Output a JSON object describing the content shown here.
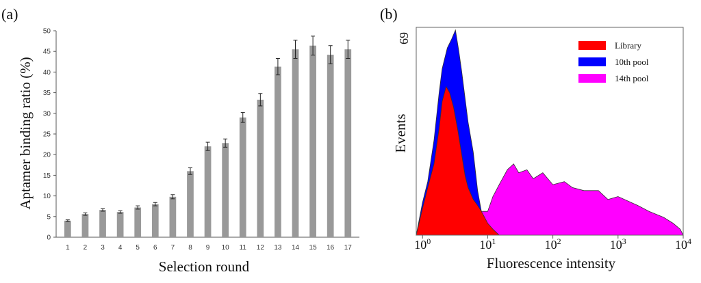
{
  "chart_data": [
    {
      "type": "bar",
      "panel_label": "(a)",
      "title": "",
      "xlabel": "Selection round",
      "ylabel": "Aptamer binding ratio (%)",
      "ylim": [
        0,
        50
      ],
      "yticks": [
        "0",
        "5",
        "10",
        "15",
        "20",
        "25",
        "30",
        "35",
        "40",
        "45",
        "50"
      ],
      "categories": [
        "1",
        "2",
        "3",
        "4",
        "5",
        "6",
        "7",
        "8",
        "9",
        "10",
        "11",
        "12",
        "13",
        "14",
        "15",
        "16",
        "17"
      ],
      "values": [
        4,
        5.6,
        6.6,
        6.1,
        7.2,
        8.0,
        9.8,
        16.0,
        22.0,
        22.8,
        29.0,
        33.3,
        41.3,
        45.5,
        46.4,
        44.2,
        45.5
      ],
      "errors": [
        0.2,
        0.3,
        0.3,
        0.3,
        0.4,
        0.4,
        0.5,
        0.8,
        1.0,
        1.0,
        1.2,
        1.5,
        2.0,
        2.2,
        2.3,
        2.2,
        2.2
      ],
      "colors": {
        "bar": "#999999",
        "error": "#222222"
      },
      "legend": "none",
      "grid": false
    },
    {
      "type": "area",
      "panel_label": "(b)",
      "title": "",
      "xlabel": "Fluorescence intensity",
      "ylabel": "Events",
      "x_scale": "log",
      "xlim": [
        0.8,
        10000
      ],
      "xticks": [
        1,
        10,
        100,
        1000,
        10000
      ],
      "xtick_labels": [
        {
          "base": "10",
          "exp": "0"
        },
        {
          "base": "10",
          "exp": "1"
        },
        {
          "base": "10",
          "exp": "2"
        },
        {
          "base": "10",
          "exp": "3"
        },
        {
          "base": "10",
          "exp": "4"
        }
      ],
      "ylim": [
        0,
        69
      ],
      "ymax_label": "69",
      "legend": "top-right",
      "grid": false,
      "series": [
        {
          "name": "14th pool",
          "color": "#ff00ff",
          "x": [
            0.8,
            1,
            2,
            5,
            8,
            10,
            12,
            15,
            20,
            25,
            30,
            40,
            50,
            70,
            100,
            150,
            200,
            300,
            500,
            700,
            1000,
            2000,
            3000,
            5000,
            7000,
            9000,
            10000
          ],
          "y": [
            0,
            3,
            5,
            7,
            8,
            8,
            13,
            17,
            22,
            24,
            21,
            22,
            19,
            21,
            17,
            18,
            16,
            15,
            15,
            12,
            13,
            10,
            8,
            6,
            4,
            2,
            0
          ]
        },
        {
          "name": "10th pool",
          "color": "#0000ff",
          "x": [
            0.8,
            1,
            1.2,
            1.5,
            1.8,
            2.0,
            2.4,
            2.8,
            3.2,
            3.6,
            4.0,
            4.5,
            5.0,
            6.0,
            7.0,
            8.0,
            9.0,
            10
          ],
          "y": [
            0,
            11,
            18,
            32,
            48,
            56,
            63,
            66,
            69,
            62,
            55,
            46,
            38,
            28,
            15,
            8,
            3,
            0
          ]
        },
        {
          "name": "Library",
          "color": "#ff0000",
          "x": [
            0.8,
            1,
            1.2,
            1.5,
            1.8,
            2.0,
            2.3,
            2.6,
            3.0,
            3.5,
            4.0,
            4.5,
            5.0,
            6.0,
            7.0,
            8.0,
            10,
            12,
            15
          ],
          "y": [
            0,
            9,
            16,
            24,
            36,
            45,
            50,
            48,
            43,
            35,
            27,
            20,
            16,
            12,
            10,
            8,
            4,
            2,
            0
          ]
        }
      ]
    }
  ]
}
